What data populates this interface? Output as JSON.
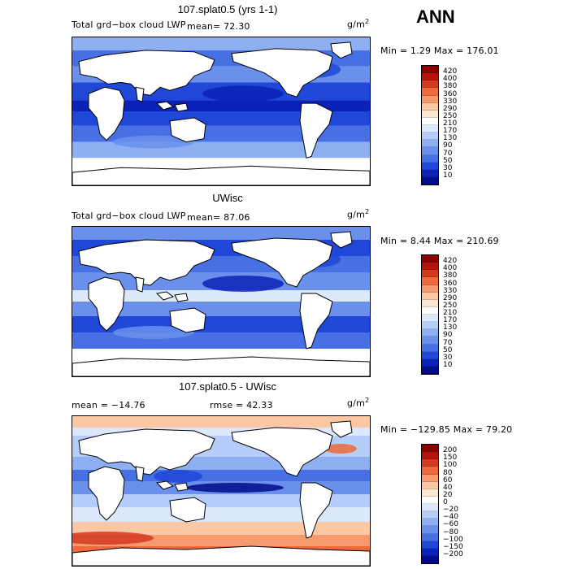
{
  "header": {
    "season": "ANN"
  },
  "panels": [
    {
      "title": "107.splat0.5 (yrs 1-1)",
      "variable_label": "Total grd−box cloud LWP",
      "stat_left": "mean=  72.30",
      "stat_right": "",
      "units": "g/m",
      "units_exp": "2",
      "minmax": "Min =   1.29 Max = 176.01",
      "levels": [
        "420",
        "400",
        "380",
        "360",
        "330",
        "290",
        "250",
        "210",
        "170",
        "130",
        "90",
        "70",
        "50",
        "30",
        "10"
      ],
      "colors": [
        "#8b0000",
        "#b3140c",
        "#d33a1f",
        "#ec6a3c",
        "#f69a6d",
        "#fbc7a5",
        "#fde7d3",
        "#ffffff",
        "#dce8fc",
        "#b5cdf8",
        "#8eb0f2",
        "#6a90ec",
        "#4670e4",
        "#1f47d8",
        "#0a22b8",
        "#000c8a"
      ],
      "style": "base1"
    },
    {
      "title": "UWisc",
      "variable_label": "Total grd−box cloud LWP",
      "stat_left": "mean=  87.06",
      "stat_right": "",
      "units": "g/m",
      "units_exp": "2",
      "minmax": "Min =   8.44 Max = 210.69",
      "levels": [
        "420",
        "400",
        "380",
        "360",
        "330",
        "290",
        "250",
        "210",
        "170",
        "130",
        "90",
        "70",
        "50",
        "30",
        "10"
      ],
      "colors": [
        "#8b0000",
        "#b3140c",
        "#d33a1f",
        "#ec6a3c",
        "#f69a6d",
        "#fbc7a5",
        "#fde7d3",
        "#ffffff",
        "#dce8fc",
        "#b5cdf8",
        "#8eb0f2",
        "#6a90ec",
        "#4670e4",
        "#1f47d8",
        "#0a22b8",
        "#000c8a"
      ],
      "style": "base2"
    },
    {
      "title": "107.splat0.5 - UWisc",
      "variable_label": "",
      "stat_left": "mean = −14.76",
      "stat_right": "rmse =  42.33",
      "units": "g/m",
      "units_exp": "2",
      "minmax": "Min = −129.85 Max =  79.20",
      "levels": [
        "200",
        "150",
        "100",
        "80",
        "60",
        "40",
        "20",
        "0",
        "−20",
        "−40",
        "−60",
        "−80",
        "−100",
        "−150",
        "−200"
      ],
      "colors": [
        "#8b0000",
        "#b3140c",
        "#d33a1f",
        "#ec6a3c",
        "#f69a6d",
        "#fbc7a5",
        "#fde7d3",
        "#ffffff",
        "#dce8fc",
        "#b5cdf8",
        "#8eb0f2",
        "#6a90ec",
        "#4670e4",
        "#1f47d8",
        "#0a22b8",
        "#000c8a"
      ],
      "style": "diff"
    }
  ]
}
